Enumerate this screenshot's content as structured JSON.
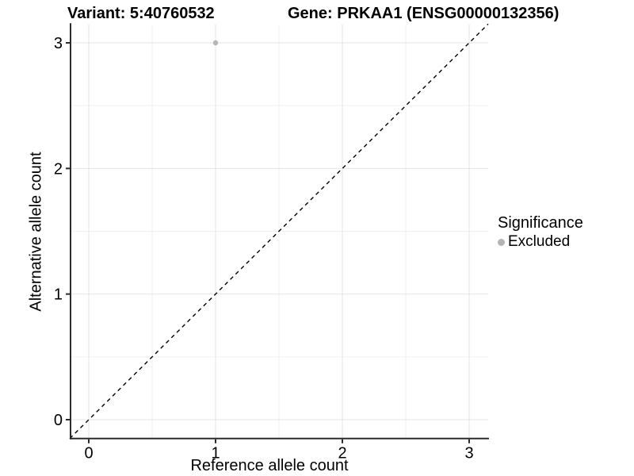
{
  "header": {
    "variant_title": "Variant: 5:40760532",
    "gene_title": "Gene: PRKAA1 (ENSG00000132356)"
  },
  "chart_data": {
    "type": "scatter",
    "title_left": "Variant: 5:40760532",
    "title_right": "Gene: PRKAA1 (ENSG00000132356)",
    "xlabel": "Reference allele count",
    "ylabel": "Alternative allele count",
    "xlim": [
      -0.15,
      3.15
    ],
    "ylim": [
      -0.15,
      3.15
    ],
    "x_ticks": [
      0,
      1,
      2,
      3
    ],
    "y_ticks": [
      0,
      1,
      2,
      3
    ],
    "x_minor_ticks": [
      0.5,
      1.5,
      2.5
    ],
    "y_minor_ticks": [
      0.5,
      1.5,
      2.5
    ],
    "grid": "on",
    "series": [
      {
        "name": "Excluded",
        "points": [
          {
            "x": 1,
            "y": 3
          }
        ],
        "color": "#b4b4b4"
      }
    ],
    "reference_line": {
      "type": "identity",
      "style": "dashed",
      "from": [
        -0.15,
        -0.15
      ],
      "to": [
        3.15,
        3.15
      ],
      "color": "#000000"
    },
    "colors": {
      "grid_major": "#e4e4e4",
      "grid_minor": "#f1f1f1",
      "axis_line": "#2b2b2b",
      "tick_text": "#000000",
      "background": "#ffffff"
    },
    "legend_position": "right"
  },
  "legend": {
    "title": "Significance",
    "items": [
      {
        "label": "Excluded",
        "color": "#b4b4b4"
      }
    ]
  }
}
